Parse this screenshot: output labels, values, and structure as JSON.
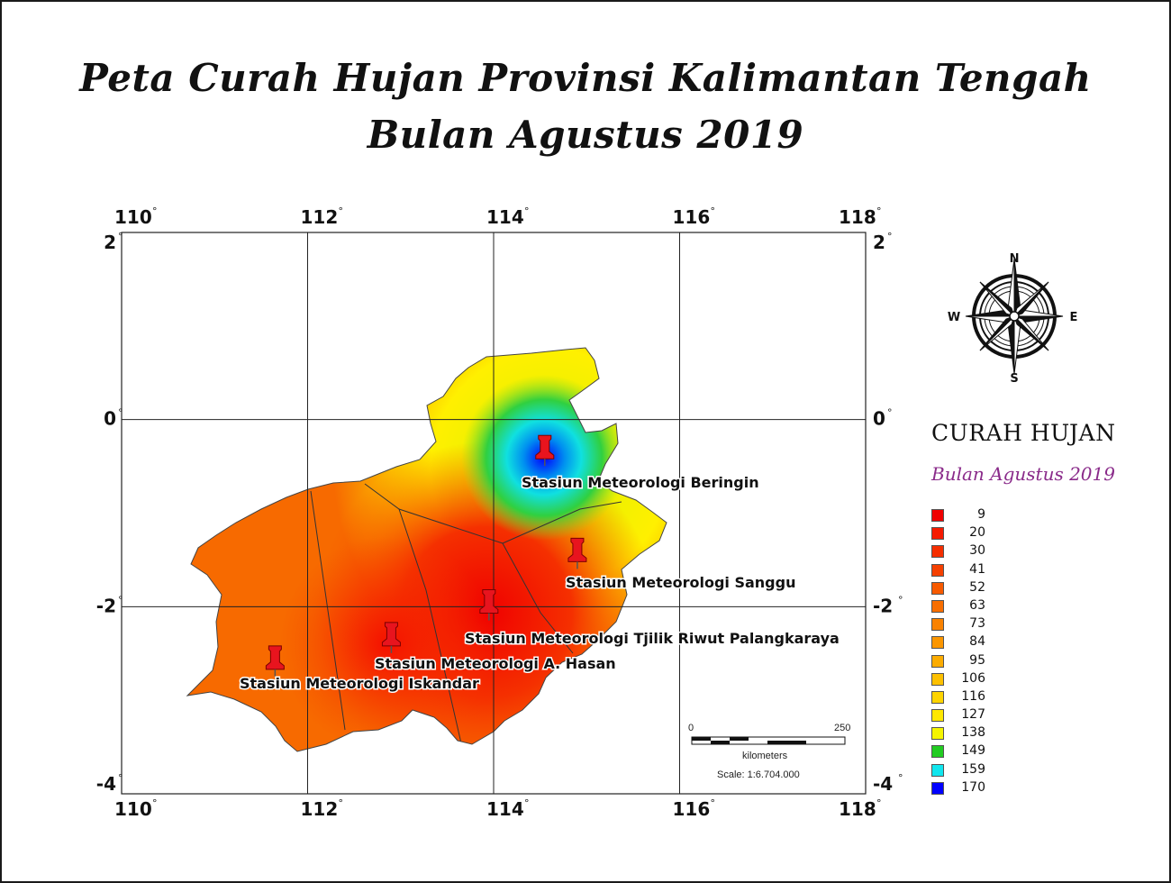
{
  "title": {
    "line1": "Peta Curah Hujan Provinsi Kalimantan Tengah",
    "line2": "Bulan Agustus 2019"
  },
  "map": {
    "lon_labels": [
      "110",
      "112",
      "114",
      "116",
      "118"
    ],
    "lat_labels": [
      "2",
      "0",
      "-2",
      "-4"
    ],
    "degree_symbol": "°",
    "lon_range": [
      110,
      118
    ],
    "lat_range": [
      -4,
      2
    ],
    "grid": true
  },
  "stations": [
    {
      "name": "Stasiun Meteorologi Beringin",
      "lon": 114.55,
      "lat": -0.4
    },
    {
      "name": "Stasiun Meteorologi Sanggu",
      "lon": 114.9,
      "lat": -1.5
    },
    {
      "name": "Stasiun Meteorologi  Tjilik Riwut Palangkaraya",
      "lon": 113.95,
      "lat": -2.05
    },
    {
      "name": "Stasiun Meteorologi A. Hasan",
      "lon": 112.9,
      "lat": -2.4
    },
    {
      "name": "Stasiun Meteorologi Iskandar",
      "lon": 111.65,
      "lat": -2.65
    }
  ],
  "compass": {
    "n": "N",
    "s": "S",
    "e": "E",
    "w": "W"
  },
  "legend": {
    "title": "CURAH HUJAN",
    "subtitle": "Bulan Agustus 2019",
    "items": [
      {
        "value": "9",
        "color": "#f00000"
      },
      {
        "value": "20",
        "color": "#f51a00"
      },
      {
        "value": "30",
        "color": "#f52e00"
      },
      {
        "value": "41",
        "color": "#f54000"
      },
      {
        "value": "52",
        "color": "#f75a00"
      },
      {
        "value": "63",
        "color": "#f86e00"
      },
      {
        "value": "73",
        "color": "#fa8200"
      },
      {
        "value": "84",
        "color": "#fb9600"
      },
      {
        "value": "95",
        "color": "#fcac00"
      },
      {
        "value": "106",
        "color": "#fdc000"
      },
      {
        "value": "116",
        "color": "#fed400"
      },
      {
        "value": "127",
        "color": "#ffe800"
      },
      {
        "value": "138",
        "color": "#f5f500"
      },
      {
        "value": "149",
        "color": "#22cc22"
      },
      {
        "value": "159",
        "color": "#11e6ee"
      },
      {
        "value": "170",
        "color": "#0000ff"
      }
    ]
  },
  "scale": {
    "start": "0",
    "end": "250",
    "unit": "kilometers",
    "ratio": "Scale: 1:6.704.000"
  }
}
